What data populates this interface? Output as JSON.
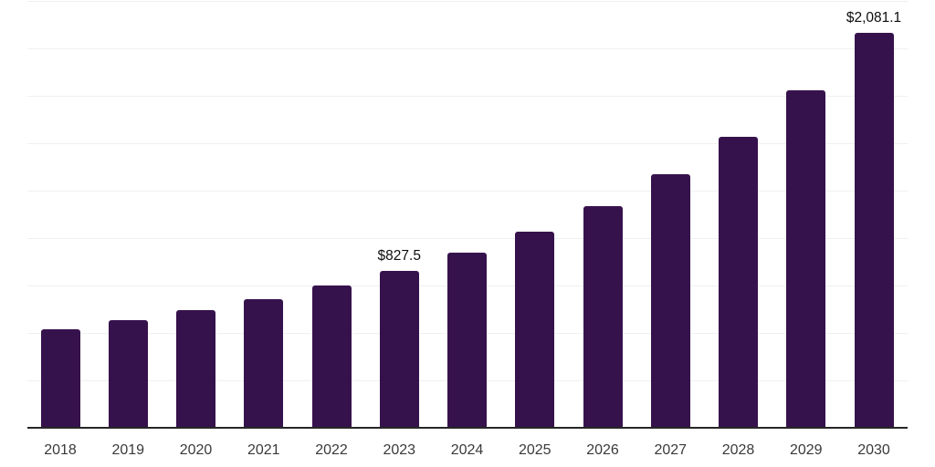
{
  "chart_data": {
    "type": "bar",
    "title": "",
    "xlabel": "",
    "ylabel": "",
    "categories": [
      "2018",
      "2019",
      "2020",
      "2021",
      "2022",
      "2023",
      "2024",
      "2025",
      "2026",
      "2027",
      "2028",
      "2029",
      "2030"
    ],
    "values": [
      521,
      569,
      620,
      677,
      750,
      827.5,
      922,
      1035,
      1165,
      1333,
      1530,
      1778,
      2081.1
    ],
    "data_labels": {
      "2023": "$827.5",
      "2030": "$2,081.1"
    },
    "ylim": [
      0,
      2250
    ],
    "grid_step": 250,
    "grid": "horizontal",
    "legend": "none",
    "y_axis_labels_visible": false,
    "colors": {
      "bar": "#36124D",
      "gridline": "#f0f0f0",
      "axis": "#262626",
      "tick_label": "#3a3a3a",
      "data_label": "#0d0d0d",
      "background": "#ffffff"
    }
  }
}
